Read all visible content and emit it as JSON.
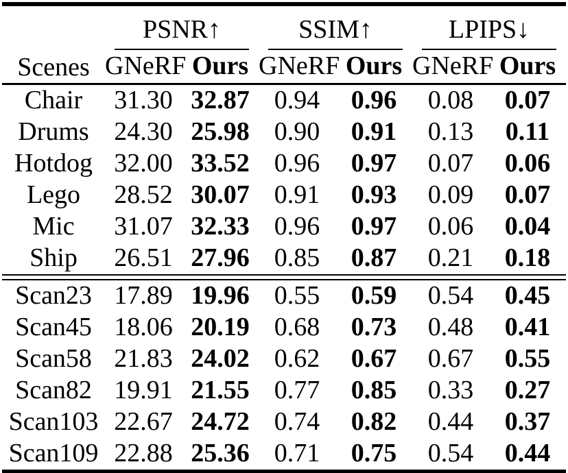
{
  "colors": {
    "text": "#000000",
    "background": "#ffffff",
    "rule": "#000000"
  },
  "table": {
    "scenes_header": "Scenes",
    "groups": [
      {
        "label": "PSNR↑"
      },
      {
        "label": "SSIM↑"
      },
      {
        "label": "LPIPS↓"
      }
    ],
    "sub_headers": {
      "baseline": "GNeRF",
      "ours": "Ours"
    },
    "blocks": [
      {
        "rows": [
          {
            "scene": "Chair",
            "values": [
              "31.30",
              "32.87",
              "0.94",
              "0.96",
              "0.08",
              "0.07"
            ]
          },
          {
            "scene": "Drums",
            "values": [
              "24.30",
              "25.98",
              "0.90",
              "0.91",
              "0.13",
              "0.11"
            ]
          },
          {
            "scene": "Hotdog",
            "values": [
              "32.00",
              "33.52",
              "0.96",
              "0.97",
              "0.07",
              "0.06"
            ]
          },
          {
            "scene": "Lego",
            "values": [
              "28.52",
              "30.07",
              "0.91",
              "0.93",
              "0.09",
              "0.07"
            ]
          },
          {
            "scene": "Mic",
            "values": [
              "31.07",
              "32.33",
              "0.96",
              "0.97",
              "0.06",
              "0.04"
            ]
          },
          {
            "scene": "Ship",
            "values": [
              "26.51",
              "27.96",
              "0.85",
              "0.87",
              "0.21",
              "0.18"
            ]
          }
        ]
      },
      {
        "rows": [
          {
            "scene": "Scan23",
            "values": [
              "17.89",
              "19.96",
              "0.55",
              "0.59",
              "0.54",
              "0.45"
            ]
          },
          {
            "scene": "Scan45",
            "values": [
              "18.06",
              "20.19",
              "0.68",
              "0.73",
              "0.48",
              "0.41"
            ]
          },
          {
            "scene": "Scan58",
            "values": [
              "21.83",
              "24.02",
              "0.62",
              "0.67",
              "0.67",
              "0.55"
            ]
          },
          {
            "scene": "Scan82",
            "values": [
              "19.91",
              "21.55",
              "0.77",
              "0.85",
              "0.33",
              "0.27"
            ]
          },
          {
            "scene": "Scan103",
            "values": [
              "22.67",
              "24.72",
              "0.74",
              "0.82",
              "0.44",
              "0.37"
            ]
          },
          {
            "scene": "Scan109",
            "values": [
              "22.88",
              "25.36",
              "0.71",
              "0.75",
              "0.54",
              "0.44"
            ]
          }
        ]
      }
    ]
  }
}
